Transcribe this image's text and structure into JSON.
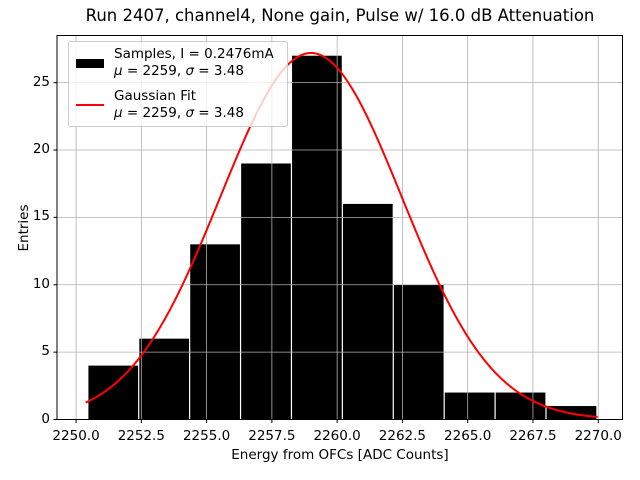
{
  "chart_data": {
    "type": "bar",
    "subtype": "histogram-with-gaussian-fit",
    "title": "Run 2407, channel4, None gain, Pulse w/ 16.0 dB Attenuation",
    "xlabel": "Energy from OFCs [ADC Counts]",
    "ylabel": "Entries",
    "bin_edges": [
      2250.45,
      2252.4,
      2254.35,
      2256.3,
      2258.25,
      2260.2,
      2262.15,
      2264.1,
      2266.05,
      2268.0,
      2269.95
    ],
    "counts": [
      4,
      6,
      13,
      19,
      27,
      16,
      10,
      2,
      2,
      1
    ],
    "total_entries": 100,
    "bar_color": "#000000",
    "fit_curve": {
      "name": "Gaussian Fit",
      "mu": 2259,
      "sigma": 3.48,
      "amplitude": 27.2,
      "x_start": 2250.4,
      "x_end": 2269.95,
      "color": "#ff0000"
    },
    "xlim": [
      2249.27,
      2270.93
    ],
    "ylim": [
      0,
      28.5
    ],
    "xticks": [
      2250.0,
      2252.5,
      2255.0,
      2257.5,
      2260.0,
      2262.5,
      2265.0,
      2267.5,
      2270.0
    ],
    "xtick_labels": [
      "2250.0",
      "2252.5",
      "2255.0",
      "2257.5",
      "2260.0",
      "2262.5",
      "2265.0",
      "2267.5",
      "2270.0"
    ],
    "yticks": [
      0,
      5,
      10,
      15,
      20,
      25
    ],
    "ytick_labels": [
      "0",
      "5",
      "10",
      "15",
      "20",
      "25"
    ],
    "grid": true,
    "grid_color": "#b0b0b0",
    "legend": {
      "position": "upper-left",
      "entries": [
        {
          "swatch": "black-patch",
          "label": "Samples, I = 0.2476mA",
          "stats_mu": "μ",
          "stats_mu_val": " = 2259, ",
          "stats_sigma": "σ",
          "stats_sigma_val": " = 3.48"
        },
        {
          "swatch": "red-line",
          "label": "Gaussian Fit",
          "stats_mu": "μ",
          "stats_mu_val": " = 2259, ",
          "stats_sigma": "σ",
          "stats_sigma_val": " = 3.48"
        }
      ]
    }
  }
}
